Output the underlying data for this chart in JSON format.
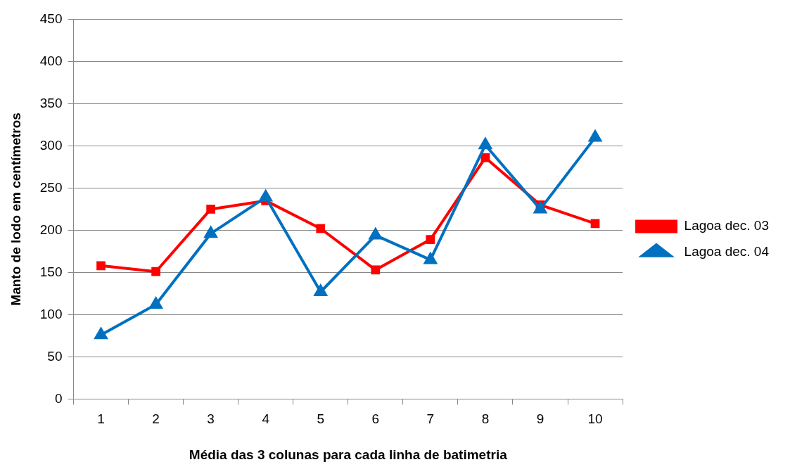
{
  "chart_data": {
    "type": "line",
    "xlabel": "Média das 3 colunas para cada linha de batimetria",
    "ylabel": "Manto de lodo em centímetros",
    "categories": [
      "1",
      "2",
      "3",
      "4",
      "5",
      "6",
      "7",
      "8",
      "9",
      "10"
    ],
    "series": [
      {
        "name": "Lagoa dec. 03",
        "color": "#ff0000",
        "marker": "square",
        "values": [
          158,
          151,
          225,
          235,
          202,
          153,
          189,
          286,
          230,
          208
        ]
      },
      {
        "name": "Lagoa dec. 04",
        "color": "#0070c0",
        "marker": "triangle",
        "values": [
          76,
          112,
          196,
          239,
          127,
          194,
          165,
          301,
          225,
          310
        ]
      }
    ],
    "ylim": [
      0,
      450
    ],
    "yticks": [
      0,
      50,
      100,
      150,
      200,
      250,
      300,
      350,
      400,
      450
    ],
    "grid": "y",
    "legend": "right",
    "line_style": "solid"
  }
}
